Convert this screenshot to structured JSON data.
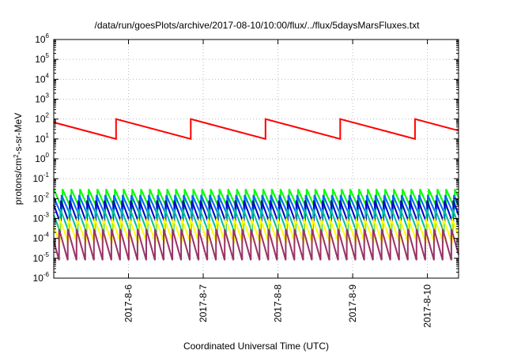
{
  "chart_data": {
    "type": "line",
    "title": "/data/run/goesPlots/archive/2017-08-10/10:00/flux/../flux/5daysMarsFluxes.txt",
    "xlabel": "Coordinated Universal Time (UTC)",
    "ylabel": {
      "pre": "protons/cm",
      "sup": "2",
      "post": "-s-sr-MeV"
    },
    "y_scale": "log",
    "ylim": [
      1e-06,
      1000000.0
    ],
    "y_ticks": [
      {
        "value": 1e-06,
        "base": "10",
        "exp": "-6"
      },
      {
        "value": 1e-05,
        "base": "10",
        "exp": "-5"
      },
      {
        "value": 0.0001,
        "base": "10",
        "exp": "-4"
      },
      {
        "value": 0.001,
        "base": "10",
        "exp": "-3"
      },
      {
        "value": 0.01,
        "base": "10",
        "exp": "-2"
      },
      {
        "value": 0.1,
        "base": "10",
        "exp": "-1"
      },
      {
        "value": 1,
        "base": "10",
        "exp": "0"
      },
      {
        "value": 10,
        "base": "10",
        "exp": "1"
      },
      {
        "value": 100,
        "base": "10",
        "exp": "2"
      },
      {
        "value": 1000,
        "base": "10",
        "exp": "3"
      },
      {
        "value": 10000,
        "base": "10",
        "exp": "4"
      },
      {
        "value": 100000,
        "base": "10",
        "exp": "5"
      },
      {
        "value": 1000000,
        "base": "10",
        "exp": "6"
      }
    ],
    "xlim": [
      "2017-08-05 00:00",
      "2017-08-10 10:00"
    ],
    "x_ticks": [
      {
        "value": "2017-08-06 00:00",
        "label": "2017-8-6"
      },
      {
        "value": "2017-08-07 00:00",
        "label": "2017-8-7"
      },
      {
        "value": "2017-08-08 00:00",
        "label": "2017-8-8"
      },
      {
        "value": "2017-08-09 00:00",
        "label": "2017-8-9"
      },
      {
        "value": "2017-08-10 00:00",
        "label": "2017-8-10"
      }
    ],
    "grid": true,
    "series": [
      {
        "color": "#ff0000",
        "period_hours": 24,
        "low": 10,
        "high": 100,
        "phase_hours": 4
      },
      {
        "color": "#00ff00",
        "period_hours": 2.8,
        "low": 0.003,
        "high": 0.03,
        "phase_hours": 0
      },
      {
        "color": "#0066ff",
        "period_hours": 2.8,
        "low": 0.0015,
        "high": 0.015,
        "phase_hours": 0.3
      },
      {
        "color": "#0000cc",
        "period_hours": 2.8,
        "low": 0.0005,
        "high": 0.008,
        "phase_hours": 0.5
      },
      {
        "color": "#00c0a0",
        "period_hours": 2.8,
        "low": 0.0002,
        "high": 0.003,
        "phase_hours": 0.7
      },
      {
        "color": "#ffff00",
        "period_hours": 2.8,
        "low": 6e-05,
        "high": 0.001,
        "phase_hours": 0.9
      },
      {
        "color": "#993366",
        "period_hours": 2.8,
        "low": 8e-06,
        "high": 0.0003,
        "phase_hours": 1.1
      }
    ]
  }
}
